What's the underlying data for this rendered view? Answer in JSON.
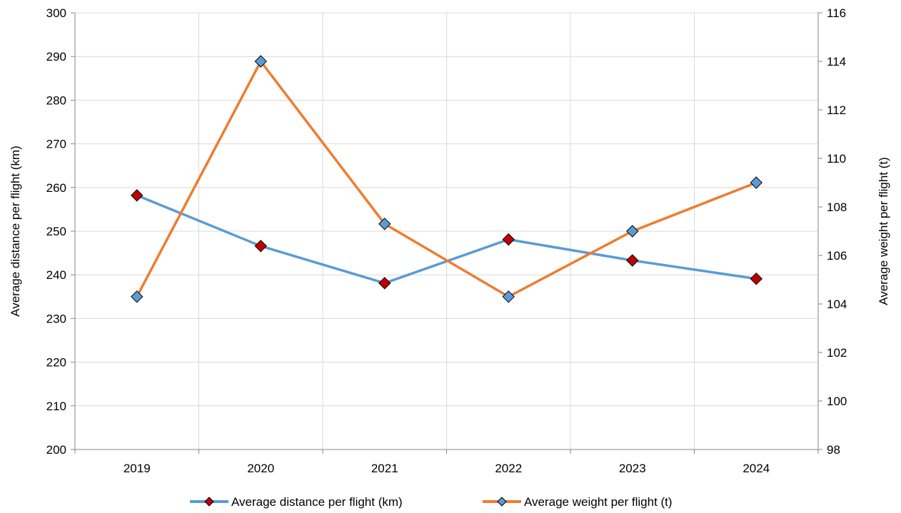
{
  "chart_data": {
    "type": "line",
    "categories": [
      "2019",
      "2020",
      "2021",
      "2022",
      "2023",
      "2024"
    ],
    "series": [
      {
        "name": "Average distance per flight (km)",
        "axis": "left",
        "values": [
          258.2,
          246.6,
          238.1,
          248.1,
          243.3,
          239.1
        ],
        "line_color": "#5B9BD5",
        "marker_color": "#C00000",
        "marker": "diamond"
      },
      {
        "name": "Average weight per flight (t)",
        "axis": "right",
        "values": [
          104.3,
          114.0,
          107.3,
          104.3,
          107.0,
          109.0
        ],
        "line_color": "#ED7D31",
        "marker_color": "#5B9BD5",
        "marker": "diamond"
      }
    ],
    "y_left": {
      "label": "Average distance per flight (km)",
      "ylim": [
        200,
        300
      ],
      "ticks": [
        "200",
        "210",
        "220",
        "230",
        "240",
        "250",
        "260",
        "270",
        "280",
        "290",
        "300"
      ]
    },
    "y_right": {
      "label": "Average weight per flight (t)",
      "ylim": [
        98,
        116
      ],
      "ticks": [
        "98",
        "100",
        "102",
        "104",
        "106",
        "108",
        "110",
        "112",
        "114",
        "116"
      ]
    },
    "grid": true,
    "legend_position": "bottom"
  }
}
